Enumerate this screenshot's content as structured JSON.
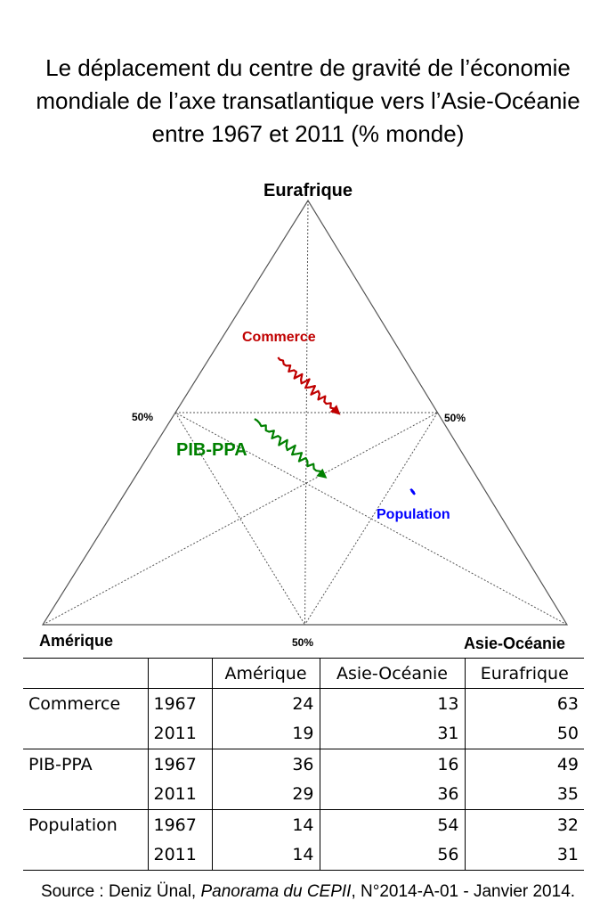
{
  "title_lines": [
    "Le déplacement  du centre de gravité de l’économie",
    "mondiale de l’axe transatlantique vers l’Asie-Océanie",
    "entre 1967 et 2011 (% monde)"
  ],
  "chart_data": {
    "type": "ternary",
    "vertices": {
      "top": "Eurafrique",
      "left": "Amérique",
      "right": "Asie-Océanie"
    },
    "midpoint_labels": {
      "left": "50%",
      "right": "50%",
      "bottom": "50%"
    },
    "series": [
      {
        "name": "Commerce",
        "color": "#c00000",
        "start": {
          "year": 1967,
          "amerique": 24,
          "asie_oceanie": 13,
          "eurafrique": 63
        },
        "end": {
          "year": 2011,
          "amerique": 19,
          "asie_oceanie": 31,
          "eurafrique": 50
        }
      },
      {
        "name": "PIB-PPA",
        "color": "#008000",
        "start": {
          "year": 1967,
          "amerique": 36,
          "asie_oceanie": 16,
          "eurafrique": 49
        },
        "end": {
          "year": 2011,
          "amerique": 29,
          "asie_oceanie": 36,
          "eurafrique": 35
        }
      },
      {
        "name": "Population",
        "color": "#0000ff",
        "start": {
          "year": 1967,
          "amerique": 14,
          "asie_oceanie": 54,
          "eurafrique": 32
        },
        "end": {
          "year": 2011,
          "amerique": 14,
          "asie_oceanie": 56,
          "eurafrique": 31
        }
      }
    ]
  },
  "table": {
    "headers": [
      "",
      "",
      "Amérique",
      "Asie-Océanie",
      "Eurafrique"
    ],
    "rows": [
      {
        "group": "Commerce",
        "year": "1967",
        "amerique": "24",
        "asie_oceanie": "13",
        "eurafrique": "63"
      },
      {
        "group": "",
        "year": "2011",
        "amerique": "19",
        "asie_oceanie": "31",
        "eurafrique": "50"
      },
      {
        "group": "PIB-PPA",
        "year": "1967",
        "amerique": "36",
        "asie_oceanie": "16",
        "eurafrique": "49"
      },
      {
        "group": "",
        "year": "2011",
        "amerique": "29",
        "asie_oceanie": "36",
        "eurafrique": "35"
      },
      {
        "group": "Population",
        "year": "1967",
        "amerique": "14",
        "asie_oceanie": "54",
        "eurafrique": "32"
      },
      {
        "group": "",
        "year": "2011",
        "amerique": "14",
        "asie_oceanie": "56",
        "eurafrique": "31"
      }
    ]
  },
  "source": {
    "prefix": "Source : Deniz Ünal, ",
    "publication": "Panorama du CEPII",
    "suffix": ", N°2014-A-01 - Janvier 2014."
  }
}
